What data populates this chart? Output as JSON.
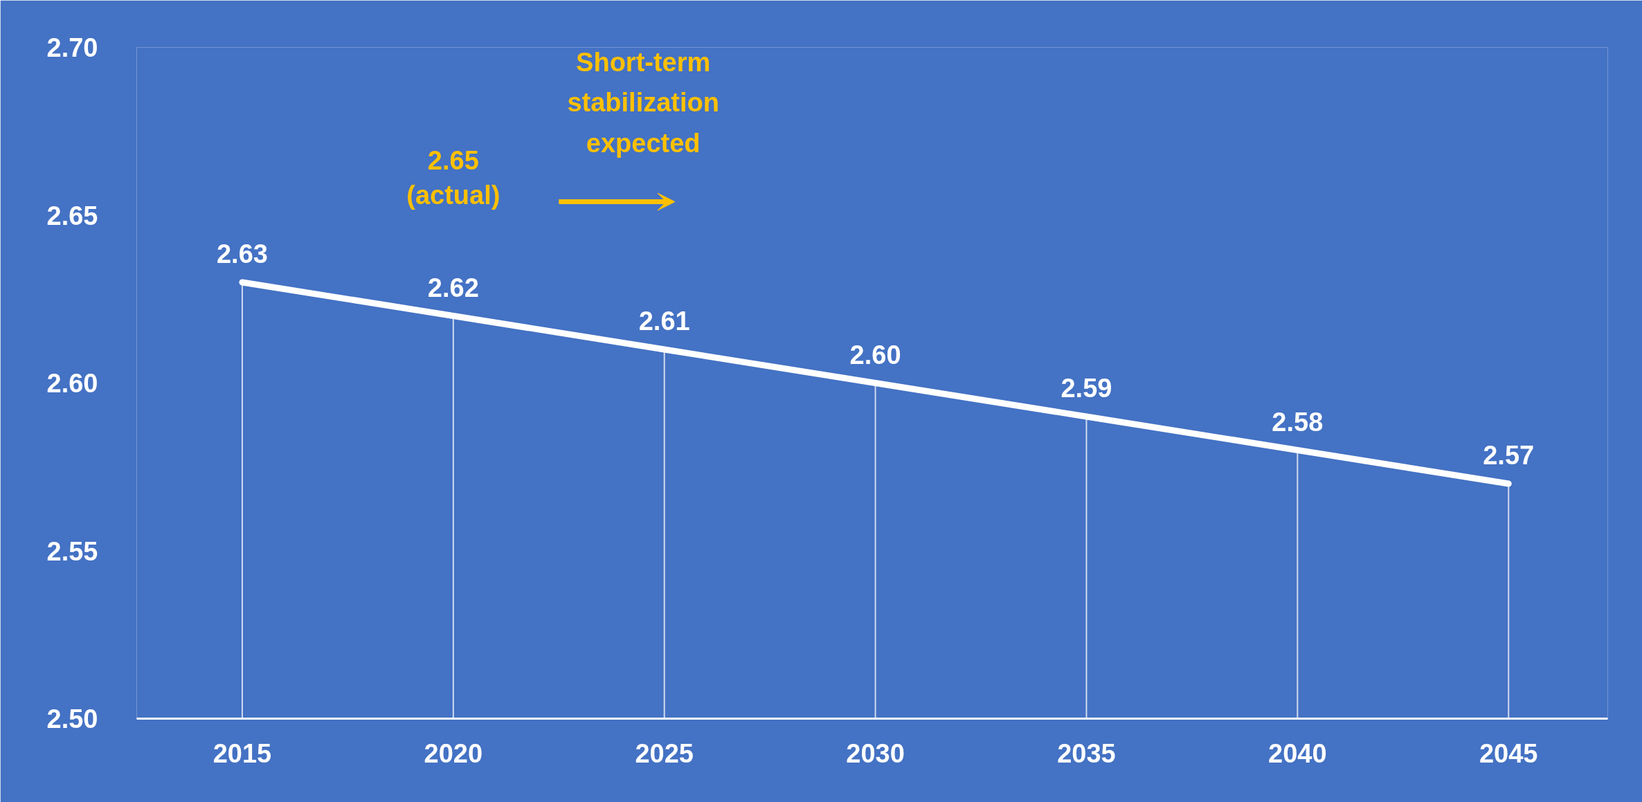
{
  "chart_data": {
    "type": "line",
    "categories": [
      "2015",
      "2020",
      "2025",
      "2030",
      "2035",
      "2040",
      "2045"
    ],
    "series": [
      {
        "color": "#ffffff",
        "values": [
          2.63,
          2.62,
          2.61,
          2.6,
          2.59,
          2.58,
          2.57
        ],
        "value_labels": [
          "2.63",
          "2.62",
          "2.61",
          "2.60",
          "2.59",
          "2.58",
          "2.57"
        ]
      }
    ],
    "ylim": [
      2.5,
      2.7
    ],
    "yticks": [
      "2.50",
      "2.55",
      "2.60",
      "2.65",
      "2.70"
    ],
    "grid": false,
    "marker": "none",
    "line_style": "solid",
    "annotations": [
      "2.65 (actual)",
      "Short-term stabilization expected"
    ]
  }
}
